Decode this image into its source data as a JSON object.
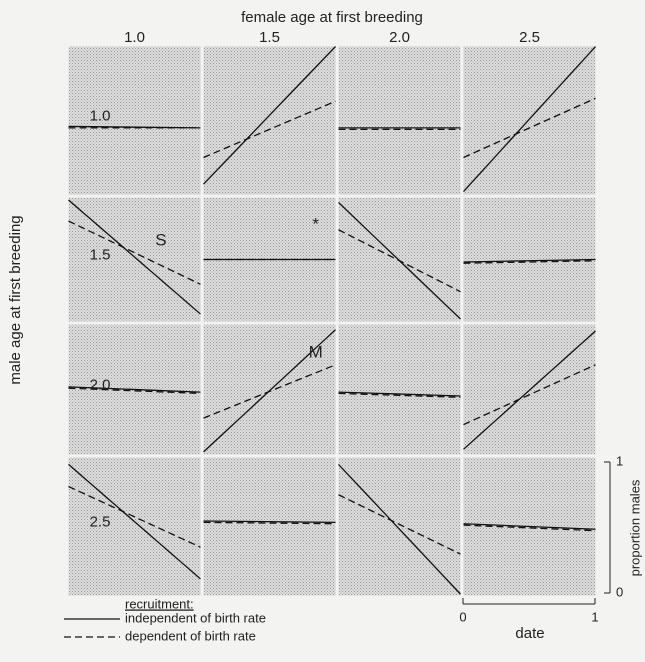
{
  "chart_data": {
    "type": "panel-grid",
    "title": "female age at first breeding",
    "ylabel": "male age at first breeding",
    "columns": [
      "1.0",
      "1.5",
      "2.0",
      "2.5"
    ],
    "rows": [
      "1.0",
      "1.5",
      "2.0",
      "2.5"
    ],
    "xlabel": "date",
    "xlim": [
      0,
      1
    ],
    "xticks": [
      0,
      1
    ],
    "x": [
      0,
      1
    ],
    "y2label": "proportion males",
    "ylim": [
      0,
      1
    ],
    "yticks": [
      0,
      1
    ],
    "legend_title": "recruitment:",
    "series": [
      {
        "name": "independent of birth rate",
        "dash": "solid",
        "color": "#111111"
      },
      {
        "name": "dependent of birth rate",
        "dash": "dashed",
        "color": "#111111"
      }
    ],
    "panels": [
      {
        "values": [
          [
            0.46,
            0.45
          ],
          [
            0.45,
            0.45
          ]
        ]
      },
      {
        "values": [
          [
            0.07,
            1.0
          ],
          [
            0.25,
            0.63
          ]
        ]
      },
      {
        "values": [
          [
            0.45,
            0.45
          ],
          [
            0.44,
            0.44
          ]
        ]
      },
      {
        "values": [
          [
            0.02,
            1.0
          ],
          [
            0.25,
            0.65
          ]
        ]
      },
      {
        "values": [
          [
            0.98,
            0.06
          ],
          [
            0.81,
            0.3
          ]
        ],
        "annotation": "S"
      },
      {
        "values": [
          [
            0.5,
            0.5
          ],
          [
            0.5,
            0.5
          ]
        ],
        "annotation": "*"
      },
      {
        "values": [
          [
            0.96,
            0.02
          ],
          [
            0.74,
            0.24
          ]
        ]
      },
      {
        "values": [
          [
            0.48,
            0.5
          ],
          [
            0.47,
            0.49
          ]
        ]
      },
      {
        "values": [
          [
            0.52,
            0.48
          ],
          [
            0.51,
            0.47
          ]
        ]
      },
      {
        "values": [
          [
            0.02,
            0.96
          ],
          [
            0.28,
            0.69
          ]
        ],
        "annotation": "M"
      },
      {
        "values": [
          [
            0.48,
            0.45
          ],
          [
            0.47,
            0.44
          ]
        ]
      },
      {
        "values": [
          [
            0.04,
            0.95
          ],
          [
            0.23,
            0.69
          ]
        ]
      },
      {
        "values": [
          [
            0.95,
            0.12
          ],
          [
            0.79,
            0.35
          ]
        ]
      },
      {
        "values": [
          [
            0.54,
            0.53
          ],
          [
            0.53,
            0.52
          ]
        ]
      },
      {
        "values": [
          [
            0.95,
            0.01
          ],
          [
            0.73,
            0.3
          ]
        ]
      },
      {
        "values": [
          [
            0.52,
            0.48
          ],
          [
            0.51,
            0.47
          ]
        ]
      }
    ]
  }
}
